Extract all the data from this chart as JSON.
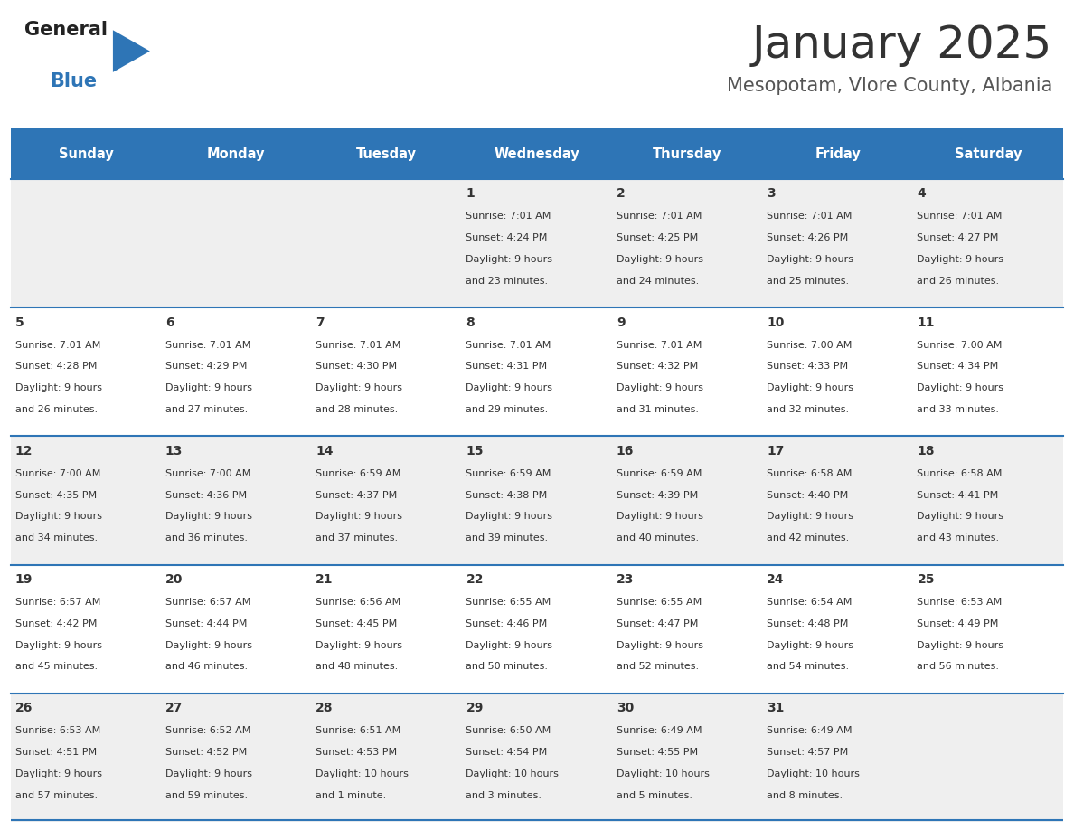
{
  "title": "January 2025",
  "subtitle": "Mesopotam, Vlore County, Albania",
  "header_bg": "#2e75b6",
  "header_text_color": "#ffffff",
  "weekdays": [
    "Sunday",
    "Monday",
    "Tuesday",
    "Wednesday",
    "Thursday",
    "Friday",
    "Saturday"
  ],
  "row_bg_even": "#efefef",
  "row_bg_odd": "#ffffff",
  "separator_color": "#2e75b6",
  "day_number_color": "#333333",
  "day_text_color": "#333333",
  "calendar": [
    [
      null,
      null,
      null,
      {
        "day": "1",
        "sunrise": "7:01 AM",
        "sunset": "4:24 PM",
        "daylight_h": "9",
        "daylight_m": "23",
        "daylight_unit": "minutes"
      },
      {
        "day": "2",
        "sunrise": "7:01 AM",
        "sunset": "4:25 PM",
        "daylight_h": "9",
        "daylight_m": "24",
        "daylight_unit": "minutes"
      },
      {
        "day": "3",
        "sunrise": "7:01 AM",
        "sunset": "4:26 PM",
        "daylight_h": "9",
        "daylight_m": "25",
        "daylight_unit": "minutes"
      },
      {
        "day": "4",
        "sunrise": "7:01 AM",
        "sunset": "4:27 PM",
        "daylight_h": "9",
        "daylight_m": "26",
        "daylight_unit": "minutes"
      }
    ],
    [
      {
        "day": "5",
        "sunrise": "7:01 AM",
        "sunset": "4:28 PM",
        "daylight_h": "9",
        "daylight_m": "26",
        "daylight_unit": "minutes"
      },
      {
        "day": "6",
        "sunrise": "7:01 AM",
        "sunset": "4:29 PM",
        "daylight_h": "9",
        "daylight_m": "27",
        "daylight_unit": "minutes"
      },
      {
        "day": "7",
        "sunrise": "7:01 AM",
        "sunset": "4:30 PM",
        "daylight_h": "9",
        "daylight_m": "28",
        "daylight_unit": "minutes"
      },
      {
        "day": "8",
        "sunrise": "7:01 AM",
        "sunset": "4:31 PM",
        "daylight_h": "9",
        "daylight_m": "29",
        "daylight_unit": "minutes"
      },
      {
        "day": "9",
        "sunrise": "7:01 AM",
        "sunset": "4:32 PM",
        "daylight_h": "9",
        "daylight_m": "31",
        "daylight_unit": "minutes"
      },
      {
        "day": "10",
        "sunrise": "7:00 AM",
        "sunset": "4:33 PM",
        "daylight_h": "9",
        "daylight_m": "32",
        "daylight_unit": "minutes"
      },
      {
        "day": "11",
        "sunrise": "7:00 AM",
        "sunset": "4:34 PM",
        "daylight_h": "9",
        "daylight_m": "33",
        "daylight_unit": "minutes"
      }
    ],
    [
      {
        "day": "12",
        "sunrise": "7:00 AM",
        "sunset": "4:35 PM",
        "daylight_h": "9",
        "daylight_m": "34",
        "daylight_unit": "minutes"
      },
      {
        "day": "13",
        "sunrise": "7:00 AM",
        "sunset": "4:36 PM",
        "daylight_h": "9",
        "daylight_m": "36",
        "daylight_unit": "minutes"
      },
      {
        "day": "14",
        "sunrise": "6:59 AM",
        "sunset": "4:37 PM",
        "daylight_h": "9",
        "daylight_m": "37",
        "daylight_unit": "minutes"
      },
      {
        "day": "15",
        "sunrise": "6:59 AM",
        "sunset": "4:38 PM",
        "daylight_h": "9",
        "daylight_m": "39",
        "daylight_unit": "minutes"
      },
      {
        "day": "16",
        "sunrise": "6:59 AM",
        "sunset": "4:39 PM",
        "daylight_h": "9",
        "daylight_m": "40",
        "daylight_unit": "minutes"
      },
      {
        "day": "17",
        "sunrise": "6:58 AM",
        "sunset": "4:40 PM",
        "daylight_h": "9",
        "daylight_m": "42",
        "daylight_unit": "minutes"
      },
      {
        "day": "18",
        "sunrise": "6:58 AM",
        "sunset": "4:41 PM",
        "daylight_h": "9",
        "daylight_m": "43",
        "daylight_unit": "minutes"
      }
    ],
    [
      {
        "day": "19",
        "sunrise": "6:57 AM",
        "sunset": "4:42 PM",
        "daylight_h": "9",
        "daylight_m": "45",
        "daylight_unit": "minutes"
      },
      {
        "day": "20",
        "sunrise": "6:57 AM",
        "sunset": "4:44 PM",
        "daylight_h": "9",
        "daylight_m": "46",
        "daylight_unit": "minutes"
      },
      {
        "day": "21",
        "sunrise": "6:56 AM",
        "sunset": "4:45 PM",
        "daylight_h": "9",
        "daylight_m": "48",
        "daylight_unit": "minutes"
      },
      {
        "day": "22",
        "sunrise": "6:55 AM",
        "sunset": "4:46 PM",
        "daylight_h": "9",
        "daylight_m": "50",
        "daylight_unit": "minutes"
      },
      {
        "day": "23",
        "sunrise": "6:55 AM",
        "sunset": "4:47 PM",
        "daylight_h": "9",
        "daylight_m": "52",
        "daylight_unit": "minutes"
      },
      {
        "day": "24",
        "sunrise": "6:54 AM",
        "sunset": "4:48 PM",
        "daylight_h": "9",
        "daylight_m": "54",
        "daylight_unit": "minutes"
      },
      {
        "day": "25",
        "sunrise": "6:53 AM",
        "sunset": "4:49 PM",
        "daylight_h": "9",
        "daylight_m": "56",
        "daylight_unit": "minutes"
      }
    ],
    [
      {
        "day": "26",
        "sunrise": "6:53 AM",
        "sunset": "4:51 PM",
        "daylight_h": "9",
        "daylight_m": "57",
        "daylight_unit": "minutes"
      },
      {
        "day": "27",
        "sunrise": "6:52 AM",
        "sunset": "4:52 PM",
        "daylight_h": "9",
        "daylight_m": "59",
        "daylight_unit": "minutes"
      },
      {
        "day": "28",
        "sunrise": "6:51 AM",
        "sunset": "4:53 PM",
        "daylight_h": "10",
        "daylight_m": "1",
        "daylight_unit": "minute"
      },
      {
        "day": "29",
        "sunrise": "6:50 AM",
        "sunset": "4:54 PM",
        "daylight_h": "10",
        "daylight_m": "3",
        "daylight_unit": "minutes"
      },
      {
        "day": "30",
        "sunrise": "6:49 AM",
        "sunset": "4:55 PM",
        "daylight_h": "10",
        "daylight_m": "5",
        "daylight_unit": "minutes"
      },
      {
        "day": "31",
        "sunrise": "6:49 AM",
        "sunset": "4:57 PM",
        "daylight_h": "10",
        "daylight_m": "8",
        "daylight_unit": "minutes"
      },
      null
    ]
  ]
}
